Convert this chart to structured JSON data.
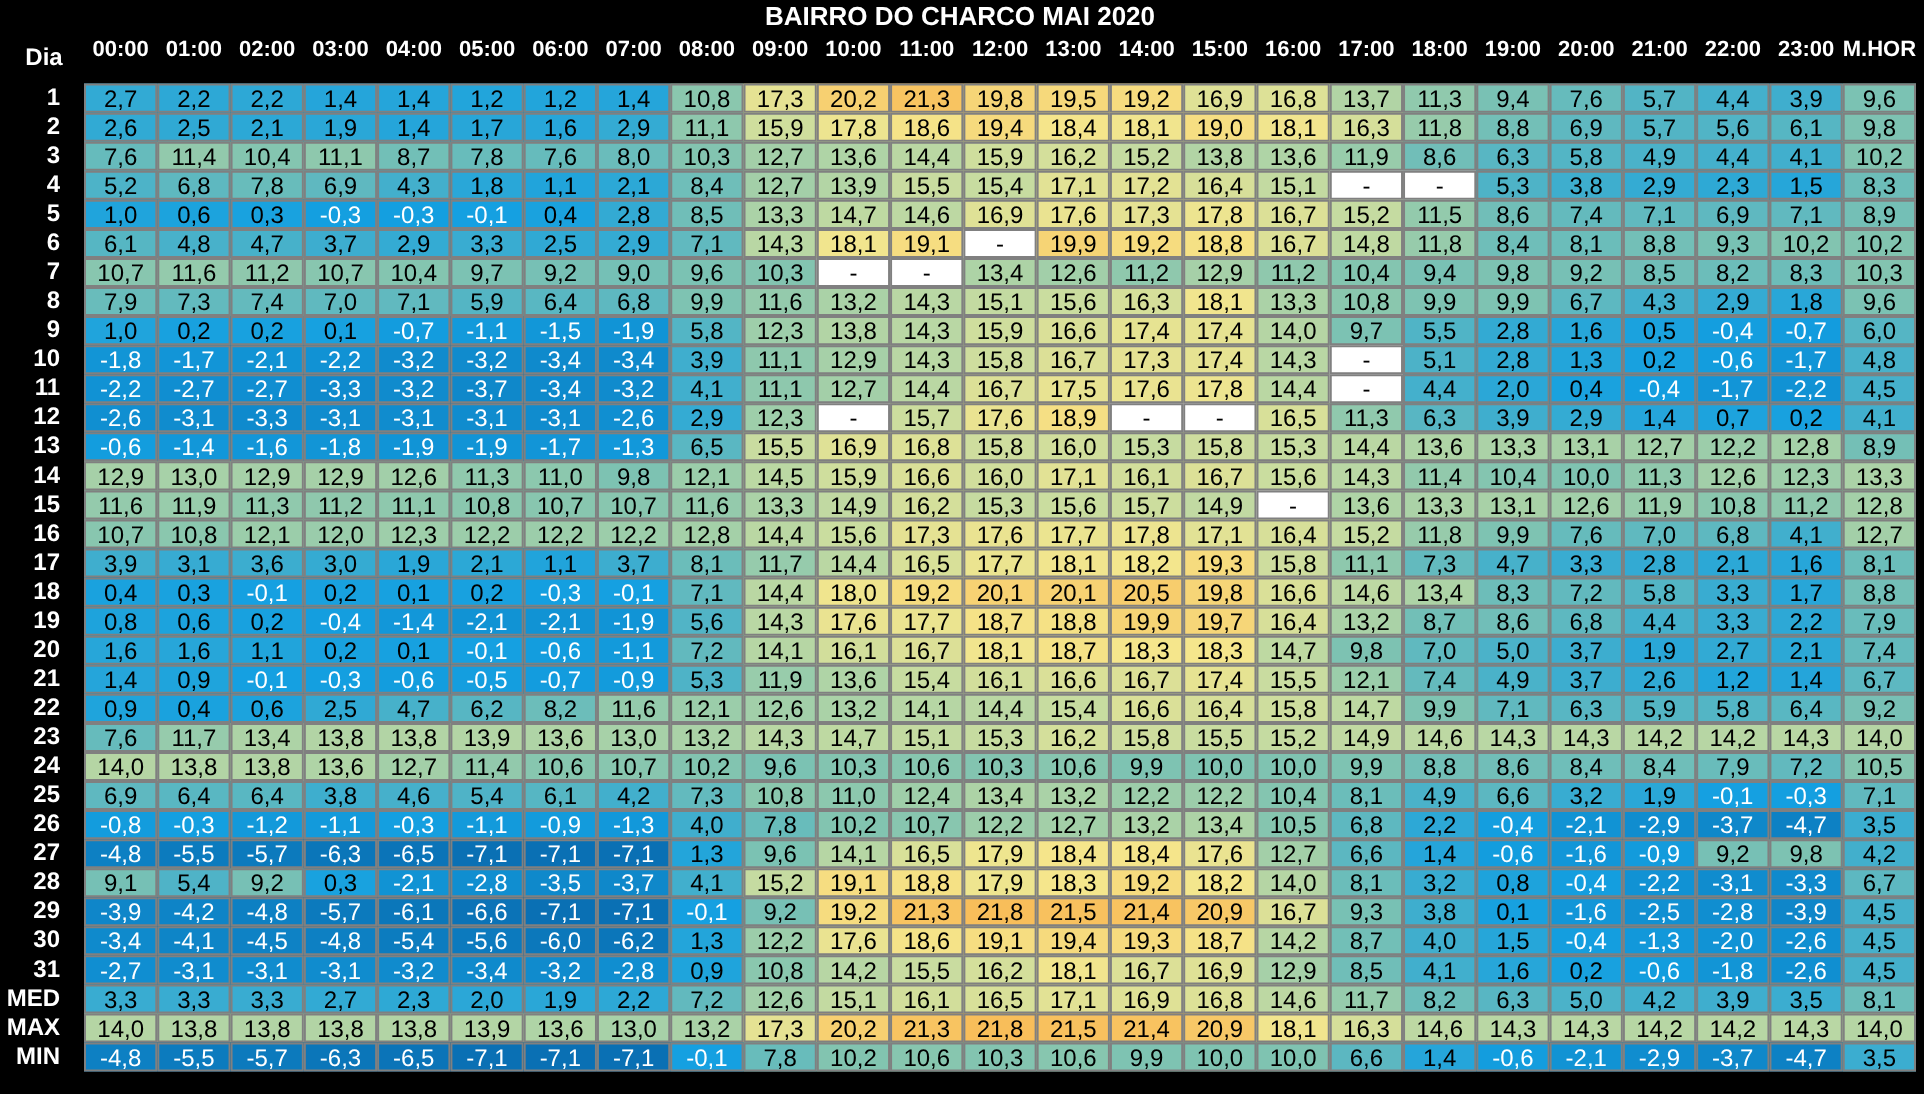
{
  "chart_data": {
    "type": "heatmap",
    "title": "BAIRRO DO CHARCO MAI 2020",
    "ylabel": "Dia",
    "data_labels": true,
    "categories": [
      "00:00",
      "01:00",
      "02:00",
      "03:00",
      "04:00",
      "05:00",
      "06:00",
      "07:00",
      "08:00",
      "09:00",
      "10:00",
      "11:00",
      "12:00",
      "13:00",
      "14:00",
      "15:00",
      "16:00",
      "17:00",
      "18:00",
      "19:00",
      "20:00",
      "21:00",
      "22:00",
      "23:00",
      "M.HOR"
    ],
    "y_categories": [
      "1",
      "2",
      "3",
      "4",
      "5",
      "6",
      "7",
      "8",
      "9",
      "10",
      "11",
      "12",
      "13",
      "14",
      "15",
      "16",
      "17",
      "18",
      "19",
      "20",
      "21",
      "22",
      "23",
      "24",
      "25",
      "26",
      "27",
      "28",
      "29",
      "30",
      "31",
      "MED",
      "MAX",
      "MIN"
    ],
    "cells": [
      [
        2.7,
        2.2,
        2.2,
        1.4,
        1.4,
        1.2,
        1.2,
        1.4,
        10.8,
        17.3,
        20.2,
        21.3,
        19.8,
        19.5,
        19.2,
        16.9,
        16.8,
        13.7,
        11.3,
        9.4,
        7.6,
        5.7,
        4.4,
        3.9,
        9.6
      ],
      [
        2.6,
        2.5,
        2.1,
        1.9,
        1.4,
        1.7,
        1.6,
        2.9,
        11.1,
        15.9,
        17.8,
        18.6,
        19.4,
        18.4,
        18.1,
        19.0,
        18.1,
        16.3,
        11.8,
        8.8,
        6.9,
        5.7,
        5.6,
        6.1,
        9.8
      ],
      [
        7.6,
        11.4,
        10.4,
        11.1,
        8.7,
        7.8,
        7.6,
        8.0,
        10.3,
        12.7,
        13.6,
        14.4,
        15.9,
        16.2,
        15.2,
        13.8,
        13.6,
        11.9,
        8.6,
        6.3,
        5.8,
        4.9,
        4.4,
        4.1,
        10.2
      ],
      [
        5.2,
        6.8,
        7.8,
        6.9,
        4.3,
        1.8,
        1.1,
        2.1,
        8.4,
        12.7,
        13.9,
        15.5,
        15.4,
        17.1,
        17.2,
        16.4,
        15.1,
        null,
        null,
        5.3,
        3.8,
        2.9,
        2.3,
        1.5,
        8.3
      ],
      [
        1.0,
        0.6,
        0.3,
        -0.3,
        -0.3,
        -0.1,
        0.4,
        2.8,
        8.5,
        13.3,
        14.7,
        14.6,
        16.9,
        17.6,
        17.3,
        17.8,
        16.7,
        15.2,
        11.5,
        8.6,
        7.4,
        7.1,
        6.9,
        7.1,
        8.9
      ],
      [
        6.1,
        4.8,
        4.7,
        3.7,
        2.9,
        3.3,
        2.5,
        2.9,
        7.1,
        14.3,
        18.1,
        19.1,
        null,
        19.9,
        19.2,
        18.8,
        16.7,
        14.8,
        11.8,
        8.4,
        8.1,
        8.8,
        9.3,
        10.2,
        10.2
      ],
      [
        10.7,
        11.6,
        11.2,
        10.7,
        10.4,
        9.7,
        9.2,
        9.0,
        9.6,
        10.3,
        null,
        null,
        13.4,
        12.6,
        11.2,
        12.9,
        11.2,
        10.4,
        9.4,
        9.8,
        9.2,
        8.5,
        8.2,
        8.3,
        10.3
      ],
      [
        7.9,
        7.3,
        7.4,
        7.0,
        7.1,
        5.9,
        6.4,
        6.8,
        9.9,
        11.6,
        13.2,
        14.3,
        15.1,
        15.6,
        16.3,
        18.1,
        13.3,
        10.8,
        9.9,
        9.9,
        6.7,
        4.3,
        2.9,
        1.8,
        9.6
      ],
      [
        1.0,
        0.2,
        0.2,
        0.1,
        -0.7,
        -1.1,
        -1.5,
        -1.9,
        5.8,
        12.3,
        13.8,
        14.3,
        15.9,
        16.6,
        17.4,
        17.4,
        14.0,
        9.7,
        5.5,
        2.8,
        1.6,
        0.5,
        -0.4,
        -0.7,
        6.0
      ],
      [
        -1.8,
        -1.7,
        -2.1,
        -2.2,
        -3.2,
        -3.2,
        -3.4,
        -3.4,
        3.9,
        11.1,
        12.9,
        14.3,
        15.8,
        16.7,
        17.3,
        17.4,
        14.3,
        null,
        5.1,
        2.8,
        1.3,
        0.2,
        -0.6,
        -1.7,
        4.8
      ],
      [
        -2.2,
        -2.7,
        -2.7,
        -3.3,
        -3.2,
        -3.7,
        -3.4,
        -3.2,
        4.1,
        11.1,
        12.7,
        14.4,
        16.7,
        17.5,
        17.6,
        17.8,
        14.4,
        null,
        4.4,
        2.0,
        0.4,
        -0.4,
        -1.7,
        -2.2,
        4.5
      ],
      [
        -2.6,
        -3.1,
        -3.3,
        -3.1,
        -3.1,
        -3.1,
        -3.1,
        -2.6,
        2.9,
        12.3,
        null,
        15.7,
        17.6,
        18.9,
        null,
        null,
        16.5,
        11.3,
        6.3,
        3.9,
        2.9,
        1.4,
        0.7,
        0.2,
        4.1
      ],
      [
        -0.6,
        -1.4,
        -1.6,
        -1.8,
        -1.9,
        -1.9,
        -1.7,
        -1.3,
        6.5,
        15.5,
        16.9,
        16.8,
        15.8,
        16.0,
        15.3,
        15.8,
        15.3,
        14.4,
        13.6,
        13.3,
        13.1,
        12.7,
        12.2,
        12.8,
        8.9
      ],
      [
        12.9,
        13.0,
        12.9,
        12.9,
        12.6,
        11.3,
        11.0,
        9.8,
        12.1,
        14.5,
        15.9,
        16.6,
        16.0,
        17.1,
        16.1,
        16.7,
        15.6,
        14.3,
        11.4,
        10.4,
        10.0,
        11.3,
        12.6,
        12.3,
        13.3
      ],
      [
        11.6,
        11.9,
        11.3,
        11.2,
        11.1,
        10.8,
        10.7,
        10.7,
        11.6,
        13.3,
        14.9,
        16.2,
        15.3,
        15.6,
        15.7,
        14.9,
        null,
        13.6,
        13.3,
        13.1,
        12.6,
        11.9,
        10.8,
        11.2,
        12.8
      ],
      [
        10.7,
        10.8,
        12.1,
        12.0,
        12.3,
        12.2,
        12.2,
        12.2,
        12.8,
        14.4,
        15.6,
        17.3,
        17.6,
        17.7,
        17.8,
        17.1,
        16.4,
        15.2,
        11.8,
        9.9,
        7.6,
        7.0,
        6.8,
        4.1,
        12.7
      ],
      [
        3.9,
        3.1,
        3.6,
        3.0,
        1.9,
        2.1,
        1.1,
        3.7,
        8.1,
        11.7,
        14.4,
        16.5,
        17.7,
        18.1,
        18.2,
        19.3,
        15.8,
        11.1,
        7.3,
        4.7,
        3.3,
        2.8,
        2.1,
        1.6,
        8.1
      ],
      [
        0.4,
        0.3,
        -0.1,
        0.2,
        0.1,
        0.2,
        -0.3,
        -0.1,
        7.1,
        14.4,
        18.0,
        19.2,
        20.1,
        20.1,
        20.5,
        19.8,
        16.6,
        14.6,
        13.4,
        8.3,
        7.2,
        5.8,
        3.3,
        1.7,
        8.8
      ],
      [
        0.8,
        0.6,
        0.2,
        -0.4,
        -1.4,
        -2.1,
        -2.1,
        -1.9,
        5.6,
        14.3,
        17.6,
        17.7,
        18.7,
        18.8,
        19.9,
        19.7,
        16.4,
        13.2,
        8.7,
        8.6,
        6.8,
        4.4,
        3.3,
        2.2,
        7.9
      ],
      [
        1.6,
        1.6,
        1.1,
        0.2,
        0.1,
        -0.1,
        -0.6,
        -1.1,
        7.2,
        14.1,
        16.1,
        16.7,
        18.1,
        18.7,
        18.3,
        18.3,
        14.7,
        9.8,
        7.0,
        5.0,
        3.7,
        1.9,
        2.7,
        2.1,
        7.4
      ],
      [
        1.4,
        0.9,
        -0.1,
        -0.3,
        -0.6,
        -0.5,
        -0.7,
        -0.9,
        5.3,
        11.9,
        13.6,
        15.4,
        16.1,
        16.6,
        16.7,
        17.4,
        15.5,
        12.1,
        7.4,
        4.9,
        3.7,
        2.6,
        1.2,
        1.4,
        6.7
      ],
      [
        0.9,
        0.4,
        0.6,
        2.5,
        4.7,
        6.2,
        8.2,
        11.6,
        12.1,
        12.6,
        13.2,
        14.1,
        14.4,
        15.4,
        16.6,
        16.4,
        15.8,
        14.7,
        9.9,
        7.1,
        6.3,
        5.9,
        5.8,
        6.4,
        9.2
      ],
      [
        7.6,
        11.7,
        13.4,
        13.8,
        13.8,
        13.9,
        13.6,
        13.0,
        13.2,
        14.3,
        14.7,
        15.1,
        15.3,
        16.2,
        15.8,
        15.5,
        15.2,
        14.9,
        14.6,
        14.3,
        14.3,
        14.2,
        14.2,
        14.3,
        14.0
      ],
      [
        14.0,
        13.8,
        13.8,
        13.6,
        12.7,
        11.4,
        10.6,
        10.7,
        10.2,
        9.6,
        10.3,
        10.6,
        10.3,
        10.6,
        9.9,
        10.0,
        10.0,
        9.9,
        8.8,
        8.6,
        8.4,
        8.4,
        7.9,
        7.2,
        10.5
      ],
      [
        6.9,
        6.4,
        6.4,
        3.8,
        4.6,
        5.4,
        6.1,
        4.2,
        7.3,
        10.8,
        11.0,
        12.4,
        13.4,
        13.2,
        12.2,
        12.2,
        10.4,
        8.1,
        4.9,
        6.6,
        3.2,
        1.9,
        -0.1,
        -0.3,
        7.1
      ],
      [
        -0.8,
        -0.3,
        -1.2,
        -1.1,
        -0.3,
        -1.1,
        -0.9,
        -1.3,
        4.0,
        7.8,
        10.2,
        10.7,
        12.2,
        12.7,
        13.2,
        13.4,
        10.5,
        6.8,
        2.2,
        -0.4,
        -2.1,
        -2.9,
        -3.7,
        -4.7,
        3.5
      ],
      [
        -4.8,
        -5.5,
        -5.7,
        -6.3,
        -6.5,
        -7.1,
        -7.1,
        -7.1,
        1.3,
        9.6,
        14.1,
        16.5,
        17.9,
        18.4,
        18.4,
        17.6,
        12.7,
        6.6,
        1.4,
        -0.6,
        -1.6,
        -0.9,
        9.2,
        9.8,
        4.2
      ],
      [
        9.1,
        5.4,
        9.2,
        0.3,
        -2.1,
        -2.8,
        -3.5,
        -3.7,
        4.1,
        15.2,
        19.1,
        18.8,
        17.9,
        18.3,
        19.2,
        18.2,
        14.0,
        8.1,
        3.2,
        0.8,
        -0.4,
        -2.2,
        -3.1,
        -3.3,
        6.7
      ],
      [
        -3.9,
        -4.2,
        -4.8,
        -5.7,
        -6.1,
        -6.6,
        -7.1,
        -7.1,
        -0.1,
        9.2,
        19.2,
        21.3,
        21.8,
        21.5,
        21.4,
        20.9,
        16.7,
        9.3,
        3.8,
        0.1,
        -1.6,
        -2.5,
        -2.8,
        -3.9,
        4.5
      ],
      [
        -3.4,
        -4.1,
        -4.5,
        -4.8,
        -5.4,
        -5.6,
        -6.0,
        -6.2,
        1.3,
        12.2,
        17.6,
        18.6,
        19.1,
        19.4,
        19.3,
        18.7,
        14.2,
        8.7,
        4.0,
        1.5,
        -0.4,
        -1.3,
        -2.0,
        -2.6,
        4.5
      ],
      [
        -2.7,
        -3.1,
        -3.1,
        -3.1,
        -3.2,
        -3.4,
        -3.2,
        -2.8,
        0.9,
        10.8,
        14.2,
        15.5,
        16.2,
        18.1,
        16.7,
        16.9,
        12.9,
        8.5,
        4.1,
        1.6,
        0.2,
        -0.6,
        -1.8,
        -2.6,
        4.5
      ],
      [
        3.3,
        3.3,
        3.3,
        2.7,
        2.3,
        2.0,
        1.9,
        2.2,
        7.2,
        12.6,
        15.1,
        16.1,
        16.5,
        17.1,
        16.9,
        16.8,
        14.6,
        11.7,
        8.2,
        6.3,
        5.0,
        4.2,
        3.9,
        3.5,
        8.1
      ],
      [
        14.0,
        13.8,
        13.8,
        13.8,
        13.8,
        13.9,
        13.6,
        13.0,
        13.2,
        17.3,
        20.2,
        21.3,
        21.8,
        21.5,
        21.4,
        20.9,
        18.1,
        16.3,
        14.6,
        14.3,
        14.3,
        14.2,
        14.2,
        14.3,
        14.0
      ],
      [
        -4.8,
        -5.5,
        -5.7,
        -6.3,
        -6.5,
        -7.1,
        -7.1,
        -7.1,
        -0.1,
        7.8,
        10.2,
        10.6,
        10.3,
        10.6,
        9.9,
        10.0,
        10.0,
        6.6,
        1.4,
        -0.6,
        -2.1,
        -2.9,
        -3.7,
        -4.7,
        3.5
      ]
    ],
    "cell_labels": [
      [
        "2,7",
        "2,2",
        "2,2",
        "1,4",
        "1,4",
        "1,2",
        "1,2",
        "1,4",
        "10,8",
        "17,3",
        "20,2",
        "21,3",
        "19,8",
        "19,5",
        "19,2",
        "16,9",
        "16,8",
        "13,7",
        "11,3",
        "9,4",
        "7,6",
        "5,7",
        "4,4",
        "3,9",
        "9,6"
      ],
      [
        "2,6",
        "2,5",
        "2,1",
        "1,9",
        "1,4",
        "1,7",
        "1,6",
        "2,9",
        "11,1",
        "15,9",
        "17,8",
        "18,6",
        "19,4",
        "18,4",
        "18,1",
        "19,0",
        "18,1",
        "16,3",
        "11,8",
        "8,8",
        "6,9",
        "5,7",
        "5,6",
        "6,1",
        "9,8"
      ],
      [
        "7,6",
        "11,4",
        "10,4",
        "11,1",
        "8,7",
        "7,8",
        "7,6",
        "8,0",
        "10,3",
        "12,7",
        "13,6",
        "14,4",
        "15,9",
        "16,2",
        "15,2",
        "13,8",
        "13,6",
        "11,9",
        "8,6",
        "6,3",
        "5,8",
        "4,9",
        "4,4",
        "4,1",
        "10,2"
      ],
      [
        "5,2",
        "6,8",
        "7,8",
        "6,9",
        "4,3",
        "1,8",
        "1,1",
        "2,1",
        "8,4",
        "12,7",
        "13,9",
        "15,5",
        "15,4",
        "17,1",
        "17,2",
        "16,4",
        "15,1",
        "-",
        "-",
        "5,3",
        "3,8",
        "2,9",
        "2,3",
        "1,5",
        "8,3"
      ],
      [
        "1,0",
        "0,6",
        "0,3",
        "-0,3",
        "-0,3",
        "-0,1",
        "0,4",
        "2,8",
        "8,5",
        "13,3",
        "14,7",
        "14,6",
        "16,9",
        "17,6",
        "17,3",
        "17,8",
        "16,7",
        "15,2",
        "11,5",
        "8,6",
        "7,4",
        "7,1",
        "6,9",
        "7,1",
        "8,9"
      ],
      [
        "6,1",
        "4,8",
        "4,7",
        "3,7",
        "2,9",
        "3,3",
        "2,5",
        "2,9",
        "7,1",
        "14,3",
        "18,1",
        "19,1",
        "-",
        "19,9",
        "19,2",
        "18,8",
        "16,7",
        "14,8",
        "11,8",
        "8,4",
        "8,1",
        "8,8",
        "9,3",
        "10,2",
        "10,2"
      ],
      [
        "10,7",
        "11,6",
        "11,2",
        "10,7",
        "10,4",
        "9,7",
        "9,2",
        "9,0",
        "9,6",
        "10,3",
        "-",
        "-",
        "13,4",
        "12,6",
        "11,2",
        "12,9",
        "11,2",
        "10,4",
        "9,4",
        "9,8",
        "9,2",
        "8,5",
        "8,2",
        "8,3",
        "10,3"
      ],
      [
        "7,9",
        "7,3",
        "7,4",
        "7,0",
        "7,1",
        "5,9",
        "6,4",
        "6,8",
        "9,9",
        "11,6",
        "13,2",
        "14,3",
        "15,1",
        "15,6",
        "16,3",
        "18,1",
        "13,3",
        "10,8",
        "9,9",
        "9,9",
        "6,7",
        "4,3",
        "2,9",
        "1,8",
        "9,6"
      ],
      [
        "1,0",
        "0,2",
        "0,2",
        "0,1",
        "-0,7",
        "-1,1",
        "-1,5",
        "-1,9",
        "5,8",
        "12,3",
        "13,8",
        "14,3",
        "15,9",
        "16,6",
        "17,4",
        "17,4",
        "14,0",
        "9,7",
        "5,5",
        "2,8",
        "1,6",
        "0,5",
        "-0,4",
        "-0,7",
        "6,0"
      ],
      [
        "-1,8",
        "-1,7",
        "-2,1",
        "-2,2",
        "-3,2",
        "-3,2",
        "-3,4",
        "-3,4",
        "3,9",
        "11,1",
        "12,9",
        "14,3",
        "15,8",
        "16,7",
        "17,3",
        "17,4",
        "14,3",
        "-",
        "5,1",
        "2,8",
        "1,3",
        "0,2",
        "-0,6",
        "-1,7",
        "4,8"
      ],
      [
        "-2,2",
        "-2,7",
        "-2,7",
        "-3,3",
        "-3,2",
        "-3,7",
        "-3,4",
        "-3,2",
        "4,1",
        "11,1",
        "12,7",
        "14,4",
        "16,7",
        "17,5",
        "17,6",
        "17,8",
        "14,4",
        "-",
        "4,4",
        "2,0",
        "0,4",
        "-0,4",
        "-1,7",
        "-2,2",
        "4,5"
      ],
      [
        "-2,6",
        "-3,1",
        "-3,3",
        "-3,1",
        "-3,1",
        "-3,1",
        "-3,1",
        "-2,6",
        "2,9",
        "12,3",
        "-",
        "15,7",
        "17,6",
        "18,9",
        "-",
        "-",
        "16,5",
        "11,3",
        "6,3",
        "3,9",
        "2,9",
        "1,4",
        "0,7",
        "0,2",
        "4,1"
      ],
      [
        "-0,6",
        "-1,4",
        "-1,6",
        "-1,8",
        "-1,9",
        "-1,9",
        "-1,7",
        "-1,3",
        "6,5",
        "15,5",
        "16,9",
        "16,8",
        "15,8",
        "16,0",
        "15,3",
        "15,8",
        "15,3",
        "14,4",
        "13,6",
        "13,3",
        "13,1",
        "12,7",
        "12,2",
        "12,8",
        "8,9"
      ],
      [
        "12,9",
        "13,0",
        "12,9",
        "12,9",
        "12,6",
        "11,3",
        "11,0",
        "9,8",
        "12,1",
        "14,5",
        "15,9",
        "16,6",
        "16,0",
        "17,1",
        "16,1",
        "16,7",
        "15,6",
        "14,3",
        "11,4",
        "10,4",
        "10,0",
        "11,3",
        "12,6",
        "12,3",
        "13,3"
      ],
      [
        "11,6",
        "11,9",
        "11,3",
        "11,2",
        "11,1",
        "10,8",
        "10,7",
        "10,7",
        "11,6",
        "13,3",
        "14,9",
        "16,2",
        "15,3",
        "15,6",
        "15,7",
        "14,9",
        "-",
        "13,6",
        "13,3",
        "13,1",
        "12,6",
        "11,9",
        "10,8",
        "11,2",
        "12,8"
      ],
      [
        "10,7",
        "10,8",
        "12,1",
        "12,0",
        "12,3",
        "12,2",
        "12,2",
        "12,2",
        "12,8",
        "14,4",
        "15,6",
        "17,3",
        "17,6",
        "17,7",
        "17,8",
        "17,1",
        "16,4",
        "15,2",
        "11,8",
        "9,9",
        "7,6",
        "7,0",
        "6,8",
        "4,1",
        "12,7"
      ],
      [
        "3,9",
        "3,1",
        "3,6",
        "3,0",
        "1,9",
        "2,1",
        "1,1",
        "3,7",
        "8,1",
        "11,7",
        "14,4",
        "16,5",
        "17,7",
        "18,1",
        "18,2",
        "19,3",
        "15,8",
        "11,1",
        "7,3",
        "4,7",
        "3,3",
        "2,8",
        "2,1",
        "1,6",
        "8,1"
      ],
      [
        "0,4",
        "0,3",
        "-0,1",
        "0,2",
        "0,1",
        "0,2",
        "-0,3",
        "-0,1",
        "7,1",
        "14,4",
        "18,0",
        "19,2",
        "20,1",
        "20,1",
        "20,5",
        "19,8",
        "16,6",
        "14,6",
        "13,4",
        "8,3",
        "7,2",
        "5,8",
        "3,3",
        "1,7",
        "8,8"
      ],
      [
        "0,8",
        "0,6",
        "0,2",
        "-0,4",
        "-1,4",
        "-2,1",
        "-2,1",
        "-1,9",
        "5,6",
        "14,3",
        "17,6",
        "17,7",
        "18,7",
        "18,8",
        "19,9",
        "19,7",
        "16,4",
        "13,2",
        "8,7",
        "8,6",
        "6,8",
        "4,4",
        "3,3",
        "2,2",
        "7,9"
      ],
      [
        "1,6",
        "1,6",
        "1,1",
        "0,2",
        "0,1",
        "-0,1",
        "-0,6",
        "-1,1",
        "7,2",
        "14,1",
        "16,1",
        "16,7",
        "18,1",
        "18,7",
        "18,3",
        "18,3",
        "14,7",
        "9,8",
        "7,0",
        "5,0",
        "3,7",
        "1,9",
        "2,7",
        "2,1",
        "7,4"
      ],
      [
        "1,4",
        "0,9",
        "-0,1",
        "-0,3",
        "-0,6",
        "-0,5",
        "-0,7",
        "-0,9",
        "5,3",
        "11,9",
        "13,6",
        "15,4",
        "16,1",
        "16,6",
        "16,7",
        "17,4",
        "15,5",
        "12,1",
        "7,4",
        "4,9",
        "3,7",
        "2,6",
        "1,2",
        "1,4",
        "6,7"
      ],
      [
        "0,9",
        "0,4",
        "0,6",
        "2,5",
        "4,7",
        "6,2",
        "8,2",
        "11,6",
        "12,1",
        "12,6",
        "13,2",
        "14,1",
        "14,4",
        "15,4",
        "16,6",
        "16,4",
        "15,8",
        "14,7",
        "9,9",
        "7,1",
        "6,3",
        "5,9",
        "5,8",
        "6,4",
        "9,2"
      ],
      [
        "7,6",
        "11,7",
        "13,4",
        "13,8",
        "13,8",
        "13,9",
        "13,6",
        "13,0",
        "13,2",
        "14,3",
        "14,7",
        "15,1",
        "15,3",
        "16,2",
        "15,8",
        "15,5",
        "15,2",
        "14,9",
        "14,6",
        "14,3",
        "14,3",
        "14,2",
        "14,2",
        "14,3",
        "14,0"
      ],
      [
        "14,0",
        "13,8",
        "13,8",
        "13,6",
        "12,7",
        "11,4",
        "10,6",
        "10,7",
        "10,2",
        "9,6",
        "10,3",
        "10,6",
        "10,3",
        "10,6",
        "9,9",
        "10,0",
        "10,0",
        "9,9",
        "8,8",
        "8,6",
        "8,4",
        "8,4",
        "7,9",
        "7,2",
        "10,5"
      ],
      [
        "6,9",
        "6,4",
        "6,4",
        "3,8",
        "4,6",
        "5,4",
        "6,1",
        "4,2",
        "7,3",
        "10,8",
        "11,0",
        "12,4",
        "13,4",
        "13,2",
        "12,2",
        "12,2",
        "10,4",
        "8,1",
        "4,9",
        "6,6",
        "3,2",
        "1,9",
        "-0,1",
        "-0,3",
        "7,1"
      ],
      [
        "-0,8",
        "-0,3",
        "-1,2",
        "-1,1",
        "-0,3",
        "-1,1",
        "-0,9",
        "-1,3",
        "4,0",
        "7,8",
        "10,2",
        "10,7",
        "12,2",
        "12,7",
        "13,2",
        "13,4",
        "10,5",
        "6,8",
        "2,2",
        "-0,4",
        "-2,1",
        "-2,9",
        "-3,7",
        "-4,7",
        "3,5"
      ],
      [
        "-4,8",
        "-5,5",
        "-5,7",
        "-6,3",
        "-6,5",
        "-7,1",
        "-7,1",
        "-7,1",
        "1,3",
        "9,6",
        "14,1",
        "16,5",
        "17,9",
        "18,4",
        "18,4",
        "17,6",
        "12,7",
        "6,6",
        "1,4",
        "-0,6",
        "-1,6",
        "-0,9",
        "9,2",
        "9,8",
        "4,2"
      ],
      [
        "9,1",
        "5,4",
        "9,2",
        "0,3",
        "-2,1",
        "-2,8",
        "-3,5",
        "-3,7",
        "4,1",
        "15,2",
        "19,1",
        "18,8",
        "17,9",
        "18,3",
        "19,2",
        "18,2",
        "14,0",
        "8,1",
        "3,2",
        "0,8",
        "-0,4",
        "-2,2",
        "-3,1",
        "-3,3",
        "6,7"
      ],
      [
        "-3,9",
        "-4,2",
        "-4,8",
        "-5,7",
        "-6,1",
        "-6,6",
        "-7,1",
        "-7,1",
        "-0,1",
        "9,2",
        "19,2",
        "21,3",
        "21,8",
        "21,5",
        "21,4",
        "20,9",
        "16,7",
        "9,3",
        "3,8",
        "0,1",
        "-1,6",
        "-2,5",
        "-2,8",
        "-3,9",
        "4,5"
      ],
      [
        "-3,4",
        "-4,1",
        "-4,5",
        "-4,8",
        "-5,4",
        "-5,6",
        "-6,0",
        "-6,2",
        "1,3",
        "12,2",
        "17,6",
        "18,6",
        "19,1",
        "19,4",
        "19,3",
        "18,7",
        "14,2",
        "8,7",
        "4,0",
        "1,5",
        "-0,4",
        "-1,3",
        "-2,0",
        "-2,6",
        "4,5"
      ],
      [
        "-2,7",
        "-3,1",
        "-3,1",
        "-3,1",
        "-3,2",
        "-3,4",
        "-3,2",
        "-2,8",
        "0,9",
        "10,8",
        "14,2",
        "15,5",
        "16,2",
        "18,1",
        "16,7",
        "16,9",
        "12,9",
        "8,5",
        "4,1",
        "1,6",
        "0,2",
        "-0,6",
        "-1,8",
        "-2,6",
        "4,5"
      ],
      [
        "3,3",
        "3,3",
        "3,3",
        "2,7",
        "2,3",
        "2,0",
        "1,9",
        "2,2",
        "7,2",
        "12,6",
        "15,1",
        "16,1",
        "16,5",
        "17,1",
        "16,9",
        "16,8",
        "14,6",
        "11,7",
        "8,2",
        "6,3",
        "5,0",
        "4,2",
        "3,9",
        "3,5",
        "8,1"
      ],
      [
        "14,0",
        "13,8",
        "13,8",
        "13,8",
        "13,8",
        "13,9",
        "13,6",
        "13,0",
        "13,2",
        "17,3",
        "20,2",
        "21,3",
        "21,8",
        "21,5",
        "21,4",
        "20,9",
        "18,1",
        "16,3",
        "14,6",
        "14,3",
        "14,3",
        "14,2",
        "14,2",
        "14,3",
        "14,0"
      ],
      [
        "-4,8",
        "-5,5",
        "-5,7",
        "-6,3",
        "-6,5",
        "-7,1",
        "-7,1",
        "-7,1",
        "-0,1",
        "7,8",
        "10,2",
        "10,6",
        "10,3",
        "10,6",
        "9,9",
        "10,0",
        "10,0",
        "6,6",
        "1,4",
        "-0,6",
        "-2,1",
        "-2,9",
        "-3,7",
        "-4,7",
        "3,5"
      ]
    ]
  }
}
